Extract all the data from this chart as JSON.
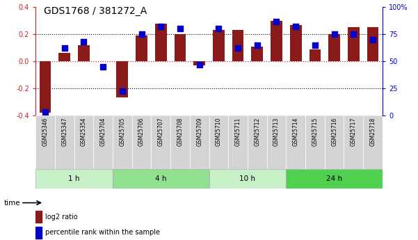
{
  "title": "GDS1768 / 381272_A",
  "samples": [
    "GSM25346",
    "GSM25347",
    "GSM25354",
    "GSM25704",
    "GSM25705",
    "GSM25706",
    "GSM25707",
    "GSM25708",
    "GSM25709",
    "GSM25710",
    "GSM25711",
    "GSM25712",
    "GSM25713",
    "GSM25714",
    "GSM25715",
    "GSM25716",
    "GSM25717",
    "GSM25718"
  ],
  "log2_ratio": [
    -0.38,
    0.06,
    0.12,
    0.0,
    -0.27,
    0.19,
    0.28,
    0.2,
    -0.03,
    0.23,
    0.23,
    0.11,
    0.3,
    0.27,
    0.09,
    0.2,
    0.25,
    0.25
  ],
  "percentile_rank": [
    3,
    62,
    68,
    45,
    22,
    75,
    82,
    80,
    47,
    80,
    62,
    65,
    87,
    82,
    65,
    75,
    75,
    70
  ],
  "bar_color": "#8B1A1A",
  "dot_color": "#0000CC",
  "ylim_left": [
    -0.4,
    0.4
  ],
  "ylim_right": [
    0,
    100
  ],
  "yticks_left": [
    -0.4,
    -0.2,
    0.0,
    0.2,
    0.4
  ],
  "yticks_right": [
    0,
    25,
    50,
    75,
    100
  ],
  "ytick_labels_right": [
    "0",
    "25",
    "50",
    "75",
    "100%"
  ],
  "hlines_dotted": [
    0.2,
    -0.2
  ],
  "groups": [
    {
      "label": "1 h",
      "start": 0,
      "end": 4,
      "color": "#c8f0c8"
    },
    {
      "label": "4 h",
      "start": 4,
      "end": 9,
      "color": "#90e090"
    },
    {
      "label": "10 h",
      "start": 9,
      "end": 13,
      "color": "#c8f0c8"
    },
    {
      "label": "24 h",
      "start": 13,
      "end": 18,
      "color": "#50d050"
    }
  ],
  "legend_items": [
    {
      "label": "log2 ratio",
      "color": "#8B1A1A"
    },
    {
      "label": "percentile rank within the sample",
      "color": "#0000CC"
    }
  ],
  "background_color": "#ffffff",
  "left_tick_color": "#cc2222",
  "right_tick_color": "#0000CC",
  "bar_width": 0.6,
  "dot_size": 28,
  "time_label": "time"
}
